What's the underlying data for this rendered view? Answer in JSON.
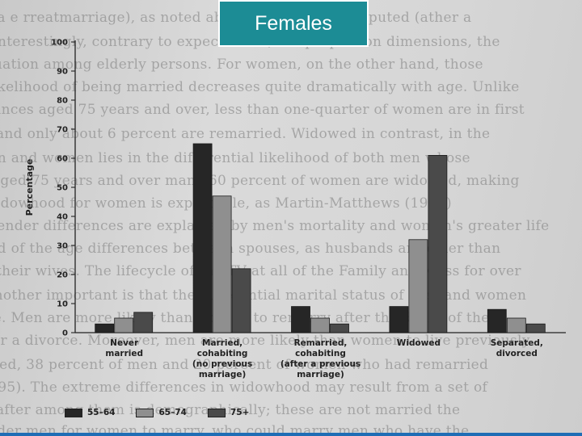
{
  "title": "Females",
  "colors": {
    "title_bg": "#1c8c95",
    "bar_55_64": "#262626",
    "bar_65_74": "#8f8f8f",
    "bar_75_plus": "#4a4a4a",
    "bottom_bar": "#1f6db5"
  },
  "chart_data": {
    "type": "bar",
    "title": "",
    "xlabel": "",
    "ylabel": "Percentage",
    "ylim": [
      0,
      100
    ],
    "yticks": [
      0,
      10,
      20,
      30,
      40,
      50,
      60,
      70,
      80,
      90,
      100
    ],
    "grid": false,
    "legend_position": "bottom-left",
    "categories": [
      [
        "Never",
        "married"
      ],
      [
        "Married,",
        "cohabiting",
        "(no previous",
        "marriage)"
      ],
      [
        "Remarried,",
        "cohabiting",
        "(after a previous",
        "marriage)"
      ],
      [
        "Widowed"
      ],
      [
        "Separated,",
        "divorced"
      ]
    ],
    "series": [
      {
        "name": "55–64",
        "color": "#262626",
        "values": [
          3,
          65,
          9,
          9,
          8
        ]
      },
      {
        "name": "65–74",
        "color": "#8f8f8f",
        "values": [
          5,
          47,
          5,
          32,
          5
        ]
      },
      {
        "name": "75+",
        "color": "#4a4a4a",
        "values": [
          7,
          22,
          3,
          61,
          3
        ]
      }
    ]
  }
}
